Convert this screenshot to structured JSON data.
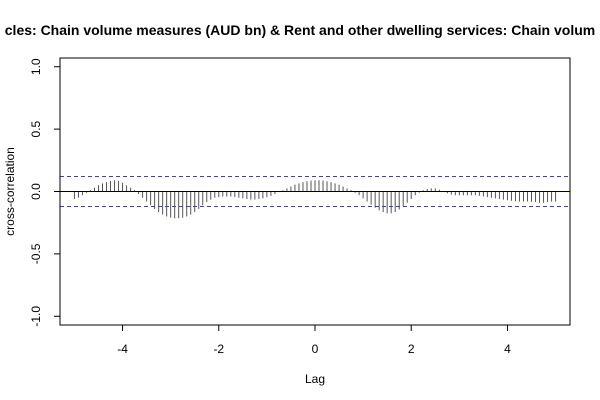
{
  "chart_data": {
    "type": "bar",
    "title": "cles: Chain volume measures (AUD bn) & Rent and other dwelling services: Chain volum",
    "xlabel": "Lag",
    "ylabel": "cross-correlation",
    "xlim": [
      -5.3,
      5.3
    ],
    "ylim": [
      -1.07,
      1.07
    ],
    "x_ticks": [
      -4,
      -2,
      0,
      2,
      4
    ],
    "x_tick_labels": [
      "-4",
      "-2",
      "0",
      "2",
      "4"
    ],
    "y_ticks": [
      -1.0,
      -0.5,
      0.0,
      0.5,
      1.0
    ],
    "y_tick_labels": [
      "-1.0",
      "-0.5",
      "0.0",
      "0.5",
      "1.0"
    ],
    "confidence_bound": 0.12,
    "x_start": -5.0,
    "x_step": 0.083333,
    "values": [
      -0.06,
      -0.05,
      -0.03,
      -0.01,
      0.01,
      0.03,
      0.05,
      0.065,
      0.075,
      0.085,
      0.09,
      0.085,
      0.07,
      0.05,
      0.03,
      0.01,
      -0.02,
      -0.05,
      -0.08,
      -0.11,
      -0.14,
      -0.165,
      -0.185,
      -0.2,
      -0.21,
      -0.215,
      -0.215,
      -0.21,
      -0.2,
      -0.185,
      -0.165,
      -0.14,
      -0.11,
      -0.085,
      -0.065,
      -0.05,
      -0.045,
      -0.04,
      -0.04,
      -0.04,
      -0.045,
      -0.05,
      -0.055,
      -0.06,
      -0.065,
      -0.065,
      -0.06,
      -0.055,
      -0.045,
      -0.035,
      -0.02,
      -0.005,
      0.01,
      0.025,
      0.04,
      0.055,
      0.065,
      0.075,
      0.082,
      0.088,
      0.09,
      0.09,
      0.088,
      0.082,
      0.075,
      0.065,
      0.055,
      0.04,
      0.025,
      0.01,
      -0.01,
      -0.03,
      -0.055,
      -0.08,
      -0.105,
      -0.13,
      -0.15,
      -0.165,
      -0.175,
      -0.175,
      -0.165,
      -0.145,
      -0.12,
      -0.09,
      -0.06,
      -0.03,
      -0.01,
      0.01,
      0.02,
      0.025,
      0.025,
      0.015,
      0.0,
      -0.015,
      -0.025,
      -0.03,
      -0.03,
      -0.03,
      -0.03,
      -0.03,
      -0.03,
      -0.035,
      -0.04,
      -0.045,
      -0.05,
      -0.055,
      -0.06,
      -0.065,
      -0.07,
      -0.075,
      -0.078,
      -0.08,
      -0.08,
      -0.08,
      -0.082,
      -0.085,
      -0.09,
      -0.09,
      -0.085,
      -0.08,
      -0.08
    ],
    "colors": {
      "bars": "#555555",
      "bounds": "#3b3bcc",
      "zero_line": "#000000",
      "frame": "#000000",
      "title": "#000000"
    },
    "grid": false
  }
}
